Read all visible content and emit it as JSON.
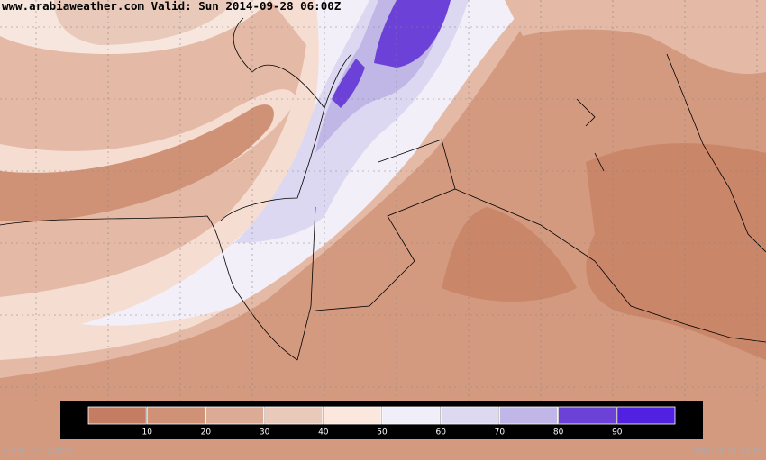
{
  "header": {
    "title": "www.arabiaweather.com Valid: Sun 2014-09-28 06:00Z"
  },
  "colorbar": {
    "colors": [
      "#c47c62",
      "#cf9276",
      "#dcab95",
      "#e9c9ba",
      "#fbe7de",
      "#f0eef9",
      "#dcd9f1",
      "#c0b6e7",
      "#6b41d8",
      "#5121e2"
    ],
    "ticks": [
      10,
      20,
      30,
      40,
      50,
      60,
      70,
      80,
      90
    ]
  },
  "footer": {
    "left": "GrADS: COLA/IGES",
    "right": "2014-09-25-04:05"
  }
}
